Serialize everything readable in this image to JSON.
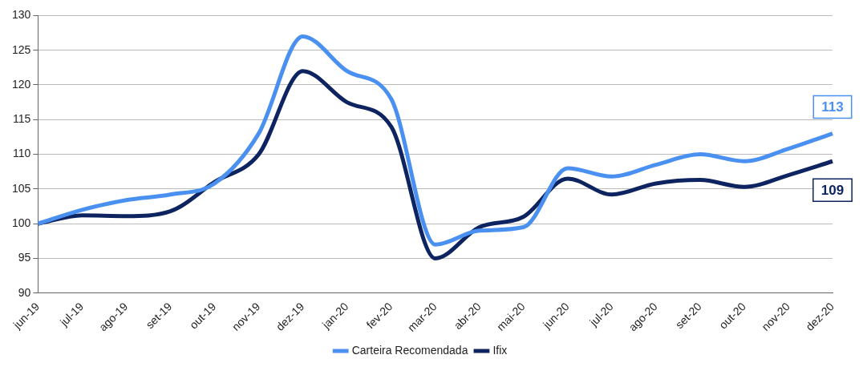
{
  "chart_data": {
    "type": "line",
    "categories": [
      "jun-19",
      "jul-19",
      "ago-19",
      "set-19",
      "out-19",
      "nov-19",
      "dez-19",
      "jan-20",
      "fev-20",
      "mar-20",
      "abr-20",
      "mai-20",
      "jun-20",
      "jul-20",
      "ago-20",
      "set-20",
      "out-20",
      "nov-20",
      "dez-20"
    ],
    "series": [
      {
        "name": "Carteira Recomendada",
        "color": "#4a90f0",
        "values": [
          100,
          102,
          103.4,
          104.2,
          105.8,
          113,
          127,
          122,
          118,
          97,
          99,
          99.5,
          108,
          106.8,
          108.5,
          110,
          109,
          110.8,
          113
        ],
        "value_labels": [
          null,
          null,
          null,
          null,
          null,
          null,
          null,
          null,
          null,
          null,
          null,
          null,
          null,
          null,
          null,
          null,
          null,
          null,
          "113"
        ]
      },
      {
        "name": "Ifix",
        "color": "#0d2460",
        "values": [
          100,
          101.2,
          101.1,
          101.8,
          106,
          110,
          122,
          117.5,
          114,
          95,
          99.5,
          101,
          106.5,
          104.2,
          105.8,
          106.3,
          105.3,
          107,
          109
        ],
        "value_labels": [
          null,
          null,
          null,
          null,
          null,
          null,
          null,
          null,
          null,
          null,
          null,
          null,
          null,
          null,
          null,
          null,
          null,
          null,
          "109"
        ]
      }
    ],
    "ylim": [
      90,
      130
    ],
    "yticks": [
      90,
      95,
      100,
      105,
      110,
      115,
      120,
      125,
      130
    ],
    "grid": "y",
    "legend": "bottom",
    "marker": "none",
    "line_style": "solid"
  }
}
